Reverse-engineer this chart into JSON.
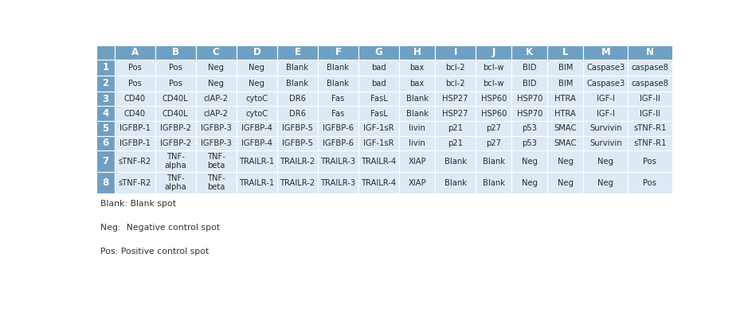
{
  "col_headers": [
    "",
    "A",
    "B",
    "C",
    "D",
    "E",
    "F",
    "G",
    "H",
    "I",
    "J",
    "K",
    "L",
    "M",
    "N"
  ],
  "row_headers": [
    "1",
    "2",
    "3",
    "4",
    "5",
    "6",
    "7",
    "8"
  ],
  "table_data": [
    [
      "Pos",
      "Pos",
      "Neg",
      "Neg",
      "Blank",
      "Blank",
      "bad",
      "bax",
      "bcl-2",
      "bcl-w",
      "BID",
      "BIM",
      "Caspase3",
      "caspase8"
    ],
    [
      "Pos",
      "Pos",
      "Neg",
      "Neg",
      "Blank",
      "Blank",
      "bad",
      "bax",
      "bcl-2",
      "bcl-w",
      "BID",
      "BIM",
      "Caspase3",
      "caspase8"
    ],
    [
      "CD40",
      "CD40L",
      "cIAP-2",
      "cytoC",
      "DR6",
      "Fas",
      "FasL",
      "Blank",
      "HSP27",
      "HSP60",
      "HSP70",
      "HTRA",
      "IGF-I",
      "IGF-II"
    ],
    [
      "CD40",
      "CD40L",
      "cIAP-2",
      "cytoC",
      "DR6",
      "Fas",
      "FasL",
      "Blank",
      "HSP27",
      "HSP60",
      "HSP70",
      "HTRA",
      "IGF-I",
      "IGF-II"
    ],
    [
      "IGFBP-1",
      "IGFBP-2",
      "IGFBP-3",
      "IGFBP-4",
      "IGFBP-5",
      "IGFBP-6",
      "IGF-1sR",
      "livin",
      "p21",
      "p27",
      "p53",
      "SMAC",
      "Survivin",
      "sTNF-R1"
    ],
    [
      "IGFBP-1",
      "IGFBP-2",
      "IGFBP-3",
      "IGFBP-4",
      "IGFBP-5",
      "IGFBP-6",
      "IGF-1sR",
      "livin",
      "p21",
      "p27",
      "p53",
      "SMAC",
      "Survivin",
      "sTNF-R1"
    ],
    [
      "sTNF-R2",
      "TNF-\nalpha",
      "TNF-\nbeta",
      "TRAILR-1",
      "TRAILR-2",
      "TRAILR-3",
      "TRAILR-4",
      "XIAP",
      "Blank",
      "Blank",
      "Neg",
      "Neg",
      "Neg",
      "Pos"
    ],
    [
      "sTNF-R2",
      "TNF-\nalpha",
      "TNF-\nbeta",
      "TRAILR-1",
      "TRAILR-2",
      "TRAILR-3",
      "TRAILR-4",
      "XIAP",
      "Blank",
      "Blank",
      "Neg",
      "Neg",
      "Neg",
      "Pos"
    ]
  ],
  "header_bg": "#6fa0c3",
  "row_header_bg": "#6fa0c3",
  "cell_bg": "#ddeaf5",
  "header_text_color": "#ffffff",
  "cell_text_color": "#2a2a2a",
  "footer_lines": [
    "Blank: Blank spot",
    "Neg:  Negative control spot",
    "Pos: Positive control spot"
  ],
  "background_color": "#ffffff",
  "fig_width": 9.39,
  "fig_height": 4.07
}
